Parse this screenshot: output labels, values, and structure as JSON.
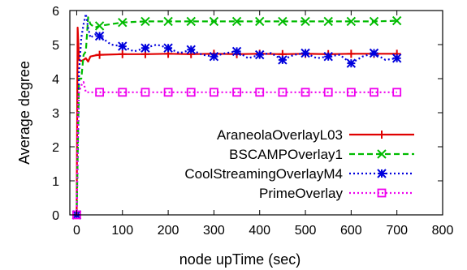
{
  "chart_data": {
    "type": "line",
    "title": "",
    "xlabel": "node upTime (sec)",
    "ylabel": "Average degree",
    "xlim": [
      -15,
      800
    ],
    "ylim": [
      0,
      6
    ],
    "xticks": [
      0,
      100,
      200,
      300,
      400,
      500,
      600,
      700,
      800
    ],
    "yticks": [
      0,
      1,
      2,
      3,
      4,
      5,
      6
    ],
    "grid": false,
    "legend_position": "center-right",
    "series": [
      {
        "name": "AraneolaOverlayL03",
        "color": "#e00000",
        "dash": "solid",
        "marker": "plus",
        "x": [
          0,
          2,
          5,
          10,
          15,
          20,
          25,
          30,
          40,
          50,
          100,
          150,
          200,
          250,
          300,
          350,
          400,
          450,
          500,
          550,
          600,
          650,
          700
        ],
        "y": [
          0,
          5.5,
          4.55,
          4.52,
          4.55,
          4.6,
          4.5,
          4.65,
          4.68,
          4.7,
          4.72,
          4.72,
          4.73,
          4.72,
          4.73,
          4.72,
          4.73,
          4.72,
          4.73,
          4.72,
          4.73,
          4.73,
          4.73
        ],
        "marker_x": [
          0,
          50,
          100,
          150,
          200,
          250,
          300,
          350,
          400,
          450,
          500,
          550,
          600,
          650,
          700
        ]
      },
      {
        "name": "BSCAMPOverlay1",
        "color": "#00bb00",
        "dash": "dashed",
        "marker": "x",
        "x": [
          0,
          5,
          10,
          15,
          20,
          25,
          30,
          40,
          50,
          100,
          150,
          200,
          250,
          300,
          350,
          400,
          450,
          500,
          550,
          600,
          650,
          700
        ],
        "y": [
          0,
          4.0,
          4.0,
          4.7,
          4.8,
          5.8,
          5.6,
          5.5,
          5.55,
          5.65,
          5.68,
          5.68,
          5.68,
          5.68,
          5.68,
          5.68,
          5.68,
          5.68,
          5.68,
          5.68,
          5.68,
          5.7
        ],
        "marker_x": [
          0,
          50,
          100,
          150,
          200,
          250,
          300,
          350,
          400,
          450,
          500,
          550,
          600,
          650,
          700
        ]
      },
      {
        "name": "CoolStreamingOverlayM4",
        "color": "#0000dd",
        "dash": "dotted",
        "marker": "star",
        "x": [
          0,
          5,
          10,
          15,
          20,
          25,
          30,
          40,
          50,
          75,
          100,
          125,
          150,
          175,
          200,
          225,
          250,
          275,
          300,
          325,
          350,
          375,
          400,
          425,
          450,
          475,
          500,
          525,
          550,
          575,
          600,
          625,
          650,
          675,
          700
        ],
        "y": [
          0,
          4.2,
          5.2,
          5.6,
          5.9,
          5.5,
          5.2,
          5.3,
          5.25,
          5.0,
          4.95,
          4.8,
          4.9,
          5.0,
          4.9,
          4.75,
          4.85,
          4.7,
          4.65,
          4.75,
          4.8,
          4.6,
          4.7,
          4.75,
          4.55,
          4.7,
          4.75,
          4.6,
          4.65,
          4.7,
          4.45,
          4.65,
          4.75,
          4.55,
          4.6
        ],
        "marker_x": [
          0,
          50,
          100,
          150,
          200,
          250,
          300,
          350,
          400,
          450,
          500,
          550,
          600,
          650,
          700
        ]
      },
      {
        "name": "PrimeOverlay",
        "color": "#ee00ee",
        "dash": "dotted",
        "marker": "square",
        "x": [
          0,
          3,
          5,
          10,
          15,
          20,
          30,
          50,
          100,
          150,
          200,
          250,
          300,
          350,
          400,
          450,
          500,
          550,
          600,
          650,
          700
        ],
        "y": [
          0,
          3.4,
          3.6,
          3.8,
          3.9,
          3.6,
          3.6,
          3.6,
          3.6,
          3.6,
          3.6,
          3.6,
          3.6,
          3.6,
          3.6,
          3.6,
          3.6,
          3.6,
          3.6,
          3.6,
          3.6
        ],
        "marker_x": [
          0,
          50,
          100,
          150,
          200,
          250,
          300,
          350,
          400,
          450,
          500,
          550,
          600,
          650,
          700
        ]
      }
    ]
  }
}
